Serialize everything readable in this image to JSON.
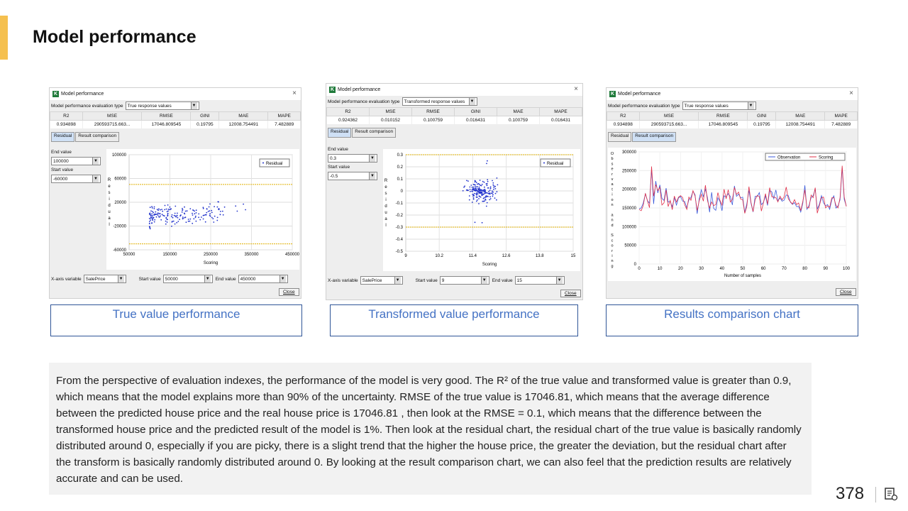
{
  "slide": {
    "title": "Model performance",
    "page_number": "378"
  },
  "captions": [
    "True value performance",
    "Transformed value performance",
    "Results comparison chart"
  ],
  "description": "From the perspective of evaluation indexes, the performance of the model is very good. The R² of the true value and transformed value is greater than 0.9, which means that the model explains more than 90% of the uncertainty. RMSE of the true value is 17046.81, which means that the average difference between the predicted house price and the real house price is 17046.81 , then look at the RMSE = 0.1, which means that the difference between the transformed house price and the predicted result of the model is  1%. Then look at the residual chart, the residual chart of the true value is basically randomly distributed around 0, especially if you are picky, there is a slight trend that the higher the house price, the greater the deviation, but the residual chart after the transform is basically randomly distributed around 0. By looking at the result comparison chart, we can also feel that the prediction results are relatively accurate and can be used.",
  "common": {
    "window_title": "Model performance",
    "eval_type_label": "Model performance evaluation type",
    "metric_headers": [
      "R2",
      "MSE",
      "RMSE",
      "GINI",
      "MAE",
      "MAPE"
    ],
    "tab_residual": "Residual",
    "tab_comparison": "Result comparison",
    "end_value_label": "End value",
    "start_value_label": "Start value",
    "x_axis_variable_label": "X-axis variable",
    "x_axis_variable": "SalePrice",
    "start_value_bottom_label": "Start value",
    "end_value_bottom_label": "End value",
    "close_label": "Close",
    "residual_axis_label": "Residual",
    "scoring_axis_label": "Scoring",
    "legend_residual": "Residual"
  },
  "windows": [
    {
      "eval_type": "True response values",
      "metrics": [
        "0.934898",
        "290593715.663...",
        "17046.809545",
        "0.19795",
        "12008.754491",
        "7.482889"
      ],
      "end_value": "100000",
      "start_value": "-60000",
      "bottom_start": "50000",
      "bottom_end": "450000",
      "chart": {
        "xticks": [
          "150000",
          "250000",
          "350000",
          "450000"
        ],
        "x_first": "50000",
        "yticks": [
          "100000",
          "60000",
          "20000",
          "-20000",
          "-60000"
        ]
      }
    },
    {
      "eval_type": "Transformed response values",
      "metrics": [
        "0.924362",
        "0.010152",
        "0.100759",
        "0.016431",
        "0.100759",
        "0.016431"
      ],
      "end_value": "0.3",
      "start_value": "-0.5",
      "bottom_start": "9",
      "bottom_end": "15",
      "chart": {
        "xticks": [
          "10.2",
          "11.4",
          "12.6",
          "13.8",
          "15"
        ],
        "x_first": "9",
        "yticks": [
          "0.3",
          "0.2",
          "0.1",
          "0",
          "-0.1",
          "-0.2",
          "-0.3",
          "-0.4",
          "-0.5"
        ]
      }
    },
    {
      "eval_type": "True response values",
      "metrics": [
        "0.934898",
        "290593715.663...",
        "17046.809545",
        "0.19795",
        "12008.754491",
        "7.482889"
      ],
      "comparison": {
        "y_label": "Observation and Scoring",
        "x_label": "Number of samples",
        "legend_obs": "Observation",
        "legend_score": "Scoring",
        "obs_color": "#3b5bdb",
        "score_color": "#e0304a",
        "yticks": [
          "300000",
          "250000",
          "200000",
          "150000",
          "100000",
          "50000",
          "0"
        ],
        "xticks": [
          "0",
          "10",
          "20",
          "30",
          "40",
          "50",
          "60",
          "70",
          "80",
          "90",
          "100"
        ]
      }
    }
  ],
  "chart_data": [
    {
      "type": "scatter",
      "title": "",
      "xlabel": "Scoring",
      "ylabel": "Residual",
      "xlim": [
        50000,
        450000
      ],
      "ylim": [
        -60000,
        100000
      ],
      "legend": [
        "Residual"
      ],
      "reference_lines": [
        50000,
        -50000
      ]
    },
    {
      "type": "scatter",
      "title": "",
      "xlabel": "Scoring",
      "ylabel": "Residual",
      "xlim": [
        9,
        15
      ],
      "ylim": [
        -0.5,
        0.3
      ],
      "legend": [
        "Residual"
      ],
      "reference_lines": [
        0.3,
        -0.3
      ]
    },
    {
      "type": "line",
      "title": "",
      "xlabel": "Number of samples",
      "ylabel": "Observation and Scoring",
      "xlim": [
        0,
        100
      ],
      "ylim": [
        0,
        300000
      ],
      "series": [
        {
          "name": "Observation"
        },
        {
          "name": "Scoring"
        }
      ]
    }
  ]
}
